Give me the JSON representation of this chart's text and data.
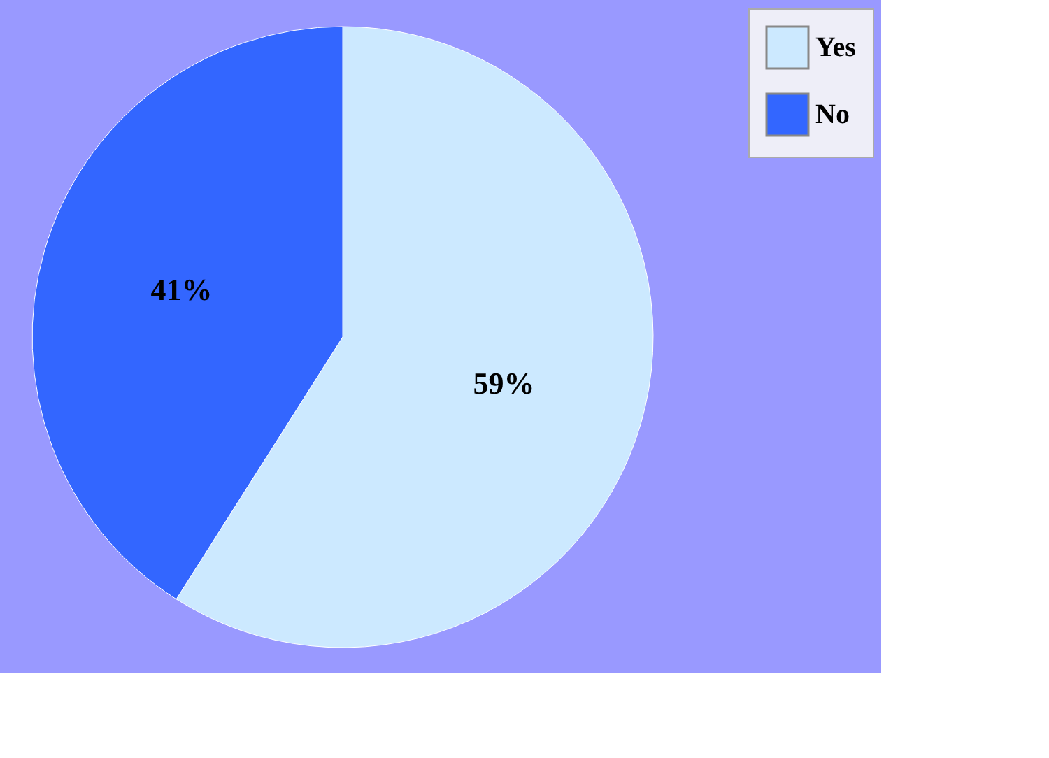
{
  "chart_data": {
    "type": "pie",
    "categories": [
      "Yes",
      "No"
    ],
    "values": [
      59,
      41
    ],
    "colors": [
      "#cce9ff",
      "#3366ff"
    ],
    "value_labels": [
      "59%",
      "41%"
    ],
    "legend": "right"
  }
}
